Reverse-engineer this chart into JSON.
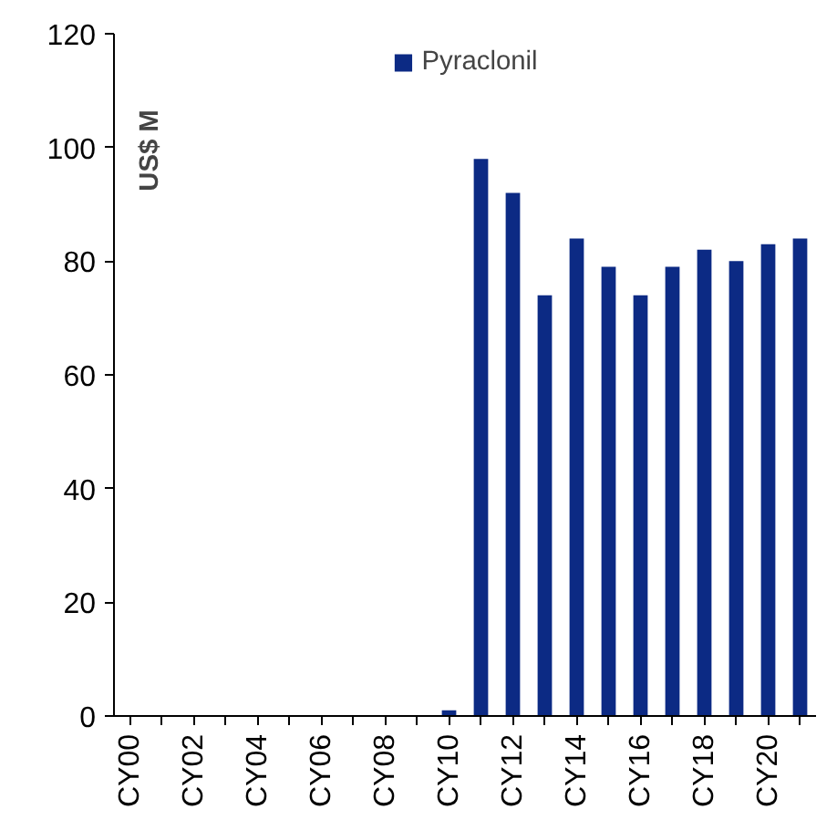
{
  "chart_data": {
    "type": "bar",
    "ylabel": "US$ M",
    "categories": [
      "CY00",
      null,
      "CY02",
      null,
      "CY04",
      null,
      "CY06",
      null,
      "CY08",
      null,
      "CY10",
      null,
      "CY12",
      null,
      "CY14",
      null,
      "CY16",
      null,
      "CY18",
      null,
      "CY20",
      null
    ],
    "series": [
      {
        "name": "Pyraclonil",
        "color": "#0c2a84",
        "values": [
          0,
          0,
          0,
          0,
          0,
          0,
          0,
          0,
          0,
          0,
          1,
          98,
          92,
          74,
          84,
          79,
          74,
          79,
          82,
          80,
          83,
          84
        ]
      }
    ],
    "ylim": [
      0,
      120
    ],
    "yticks": [
      0,
      20,
      40,
      60,
      80,
      100,
      120
    ],
    "grid": false,
    "legend": "top"
  }
}
